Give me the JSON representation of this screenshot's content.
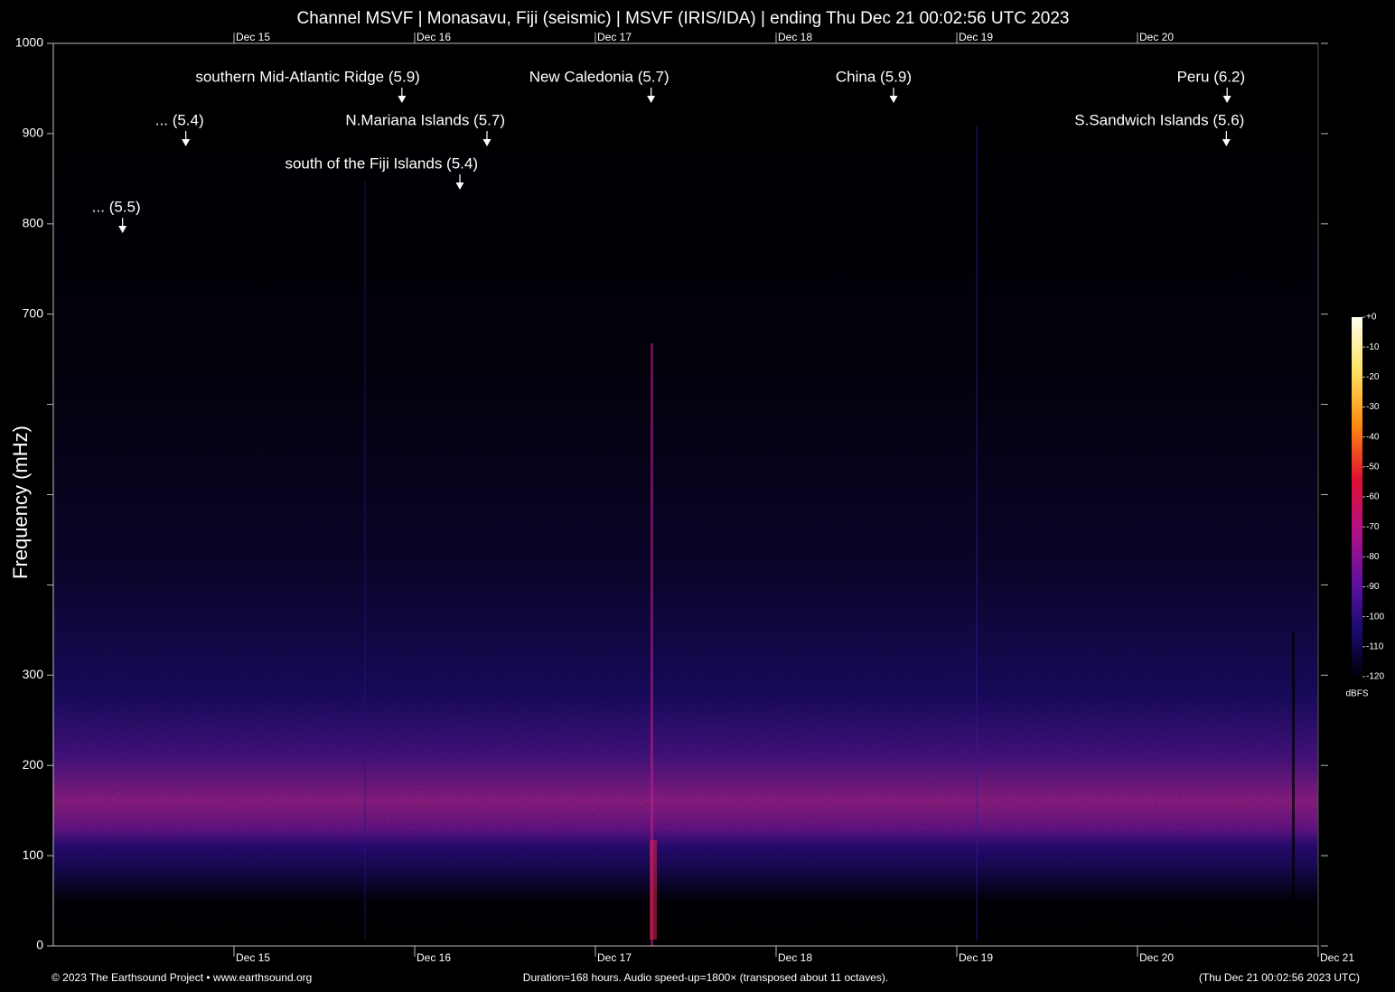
{
  "chart_data": {
    "type": "spectrogram",
    "title": "Channel MSVF | Monasavu, Fiji (seismic) | MSVF (IRIS/IDA) | ending Thu Dec 21 00:02:56 UTC 2023",
    "y_label": "Frequency (mHz)",
    "xlim": [
      0,
      168
    ],
    "xticks": [
      {
        "value": 24,
        "label": "Dec 15"
      },
      {
        "value": 48,
        "label": "Dec 16"
      },
      {
        "value": 72,
        "label": "Dec 17"
      },
      {
        "value": 96,
        "label": "Dec 18"
      },
      {
        "value": 120,
        "label": "Dec 19"
      },
      {
        "value": 144,
        "label": "Dec 20"
      },
      {
        "value": 168,
        "label": "Dec 21"
      }
    ],
    "ylim": [
      0,
      1000
    ],
    "yticks": [
      0,
      100,
      200,
      300,
      {
        "value": 400,
        "label": null
      },
      {
        "value": 500,
        "label": null
      },
      {
        "value": 600,
        "label": null
      },
      700,
      800,
      900,
      1000
    ],
    "annotations": [
      {
        "text": "southern Mid-Atlantic Ridge (5.9)",
        "x": 46.3
      },
      {
        "text": "New Caledonia (5.7)",
        "x": 79.4
      },
      {
        "text": "China (5.9)",
        "x": 111.6
      },
      {
        "text": "Peru (6.2)",
        "x": 155.9
      },
      {
        "text": "... (5.4)",
        "x": 17.6
      },
      {
        "text": "N.Mariana Islands (5.7)",
        "x": 57.6
      },
      {
        "text": "S.Sandwich Islands (5.6)",
        "x": 155.8
      },
      {
        "text": "south of the Fiji Islands (5.4)",
        "x": 54.0
      },
      {
        "text": "... (5.5)",
        "x": 9.2
      }
    ],
    "colorbar": {
      "label": "dBFS",
      "clim": [
        -120,
        0
      ],
      "ticks": [
        {
          "value": 0,
          "label": "+0"
        },
        -10,
        -20,
        -30,
        -40,
        -50,
        -60,
        -70,
        -80,
        -90,
        -100,
        -110,
        -120
      ]
    },
    "footer": {
      "left": "© 2023 The Earthsound Project • www.earthsound.org",
      "center": "Duration=168 hours. Audio speed-up=1800× (transposed about 11 octaves).",
      "right": "(Thu Dec 21 00:02:56 2023 UTC)"
    }
  }
}
